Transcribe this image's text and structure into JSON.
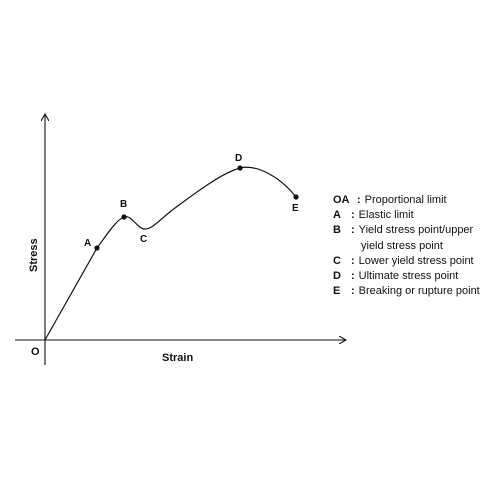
{
  "diagram": {
    "axes": {
      "x_label": "Strain",
      "y_label": "Stress",
      "origin_label": "O"
    },
    "points": [
      {
        "id": "A",
        "label": "A"
      },
      {
        "id": "B",
        "label": "B"
      },
      {
        "id": "C",
        "label": "C"
      },
      {
        "id": "D",
        "label": "D"
      },
      {
        "id": "E",
        "label": "E"
      }
    ]
  },
  "legend": [
    {
      "key": "OA",
      "sep": ":",
      "text": "Proportional limit"
    },
    {
      "key": "A",
      "sep": ":",
      "text": "Elastic limit"
    },
    {
      "key": "B",
      "sep": ":",
      "text": "Yield stress point/upper",
      "text_cont": "yield stress point"
    },
    {
      "key": "C",
      "sep": ":",
      "text": "Lower yield stress point"
    },
    {
      "key": "D",
      "sep": ":",
      "text": "Ultimate stress point"
    },
    {
      "key": "E",
      "sep": ":",
      "text": "Breaking or rupture point"
    }
  ],
  "colors": {
    "line": "#111111",
    "background": "#ffffff"
  }
}
